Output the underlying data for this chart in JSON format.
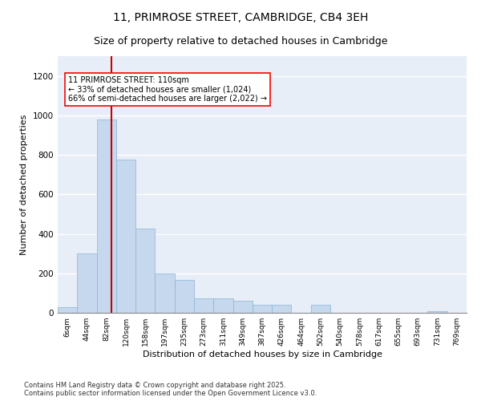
{
  "title_line1": "11, PRIMROSE STREET, CAMBRIDGE, CB4 3EH",
  "title_line2": "Size of property relative to detached houses in Cambridge",
  "xlabel": "Distribution of detached houses by size in Cambridge",
  "ylabel": "Number of detached properties",
  "bar_color": "#c5d8ee",
  "bar_edge_color": "#8ab4d4",
  "background_color": "#e8eef8",
  "categories": [
    "6sqm",
    "44sqm",
    "82sqm",
    "120sqm",
    "158sqm",
    "197sqm",
    "235sqm",
    "273sqm",
    "311sqm",
    "349sqm",
    "387sqm",
    "426sqm",
    "464sqm",
    "502sqm",
    "540sqm",
    "578sqm",
    "617sqm",
    "655sqm",
    "693sqm",
    "731sqm",
    "769sqm"
  ],
  "values": [
    28,
    300,
    980,
    775,
    425,
    200,
    165,
    75,
    75,
    60,
    40,
    40,
    0,
    40,
    0,
    0,
    0,
    0,
    0,
    10,
    0
  ],
  "property_line_x": 2.74,
  "annotation_text": "11 PRIMROSE STREET: 110sqm\n← 33% of detached houses are smaller (1,024)\n66% of semi-detached houses are larger (2,022) →",
  "red_line_color": "#cc0000",
  "footer_line1": "Contains HM Land Registry data © Crown copyright and database right 2025.",
  "footer_line2": "Contains public sector information licensed under the Open Government Licence v3.0.",
  "ylim": [
    0,
    1300
  ],
  "yticks": [
    0,
    200,
    400,
    600,
    800,
    1000,
    1200
  ],
  "title_fontsize": 10,
  "subtitle_fontsize": 9,
  "axis_label_fontsize": 8,
  "tick_fontsize": 6.5,
  "annotation_fontsize": 7,
  "footer_fontsize": 6
}
